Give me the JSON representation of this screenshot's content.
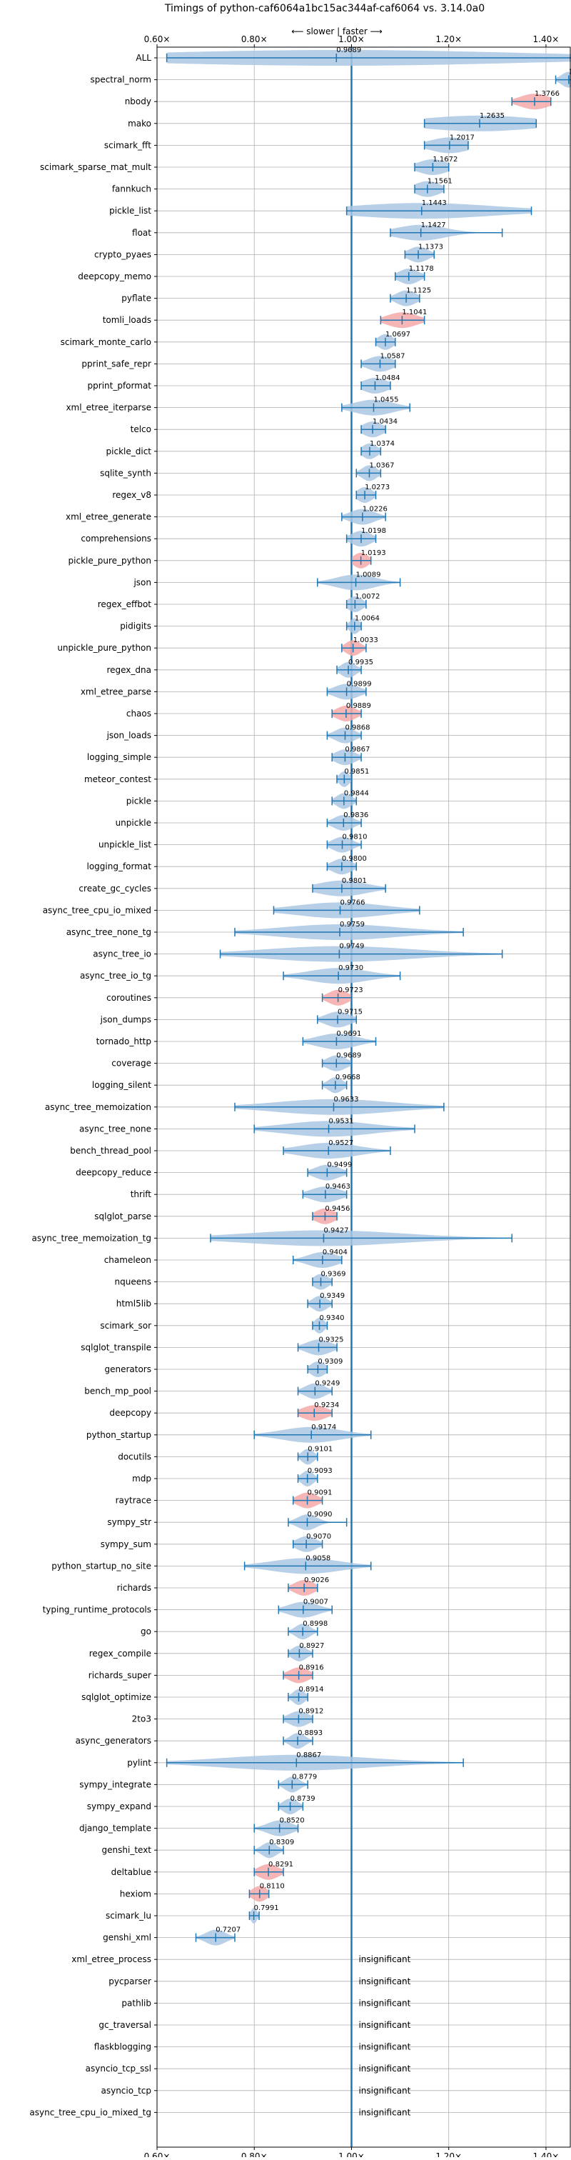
{
  "chart_data": {
    "type": "violin",
    "title": "Timings of python-caf6064a1bc15ac344af-caf6064 vs. 3.14.0a0",
    "direction_label": "⟵ slower | faster ⟶",
    "xlim": [
      0.6,
      1.45
    ],
    "x_ticks": [
      0.6,
      0.8,
      1.0,
      1.2,
      1.4
    ],
    "x_tick_labels": [
      "0.60×",
      "0.80×",
      "1.00×",
      "1.20×",
      "1.40×"
    ],
    "grid": true,
    "reference_x": 1.0,
    "insignificant_label": "insignificant",
    "colors": {
      "normal": "#1f77b4",
      "normal_fill": "#aac7e3",
      "highlight_fill": "#f4a9a9",
      "reference": "#1f77b4",
      "grid": "#b0b0b0"
    },
    "benchmarks": [
      {
        "name": "ALL",
        "value": 0.9689,
        "low": 0.62,
        "high": 1.46,
        "label": "0.9689",
        "highlight": false,
        "spread": 0.4
      },
      {
        "name": "spectral_norm",
        "value": 1.4468,
        "low": 1.42,
        "high": 1.46,
        "label": "1.4468",
        "highlight": false,
        "spread": 0.015
      },
      {
        "name": "nbody",
        "value": 1.3766,
        "low": 1.33,
        "high": 1.41,
        "label": "1.3766",
        "highlight": true,
        "spread": 0.03
      },
      {
        "name": "mako",
        "value": 1.2635,
        "low": 1.15,
        "high": 1.38,
        "label": "1.2635",
        "highlight": false,
        "spread": 0.12
      },
      {
        "name": "scimark_fft",
        "value": 1.2017,
        "low": 1.15,
        "high": 1.24,
        "label": "1.2017",
        "highlight": false,
        "spread": 0.04
      },
      {
        "name": "scimark_sparse_mat_mult",
        "value": 1.1672,
        "low": 1.13,
        "high": 1.2,
        "label": "1.1672",
        "highlight": false,
        "spread": 0.03
      },
      {
        "name": "fannkuch",
        "value": 1.1561,
        "low": 1.13,
        "high": 1.19,
        "label": "1.1561",
        "highlight": false,
        "spread": 0.025
      },
      {
        "name": "pickle_list",
        "value": 1.1443,
        "low": 0.99,
        "high": 1.37,
        "label": "1.1443",
        "highlight": false,
        "spread": 0.15
      },
      {
        "name": "float",
        "value": 1.1427,
        "low": 1.08,
        "high": 1.31,
        "label": "1.1427",
        "highlight": false,
        "spread": 0.05
      },
      {
        "name": "crypto_pyaes",
        "value": 1.1373,
        "low": 1.11,
        "high": 1.17,
        "label": "1.1373",
        "highlight": false,
        "spread": 0.02
      },
      {
        "name": "deepcopy_memo",
        "value": 1.1178,
        "low": 1.09,
        "high": 1.15,
        "label": "1.1178",
        "highlight": false,
        "spread": 0.02
      },
      {
        "name": "pyflate",
        "value": 1.1125,
        "low": 1.08,
        "high": 1.14,
        "label": "1.1125",
        "highlight": false,
        "spread": 0.02
      },
      {
        "name": "tomli_loads",
        "value": 1.1041,
        "low": 1.06,
        "high": 1.15,
        "label": "1.1041",
        "highlight": true,
        "spread": 0.03
      },
      {
        "name": "scimark_monte_carlo",
        "value": 1.0697,
        "low": 1.05,
        "high": 1.09,
        "label": "1.0697",
        "highlight": false,
        "spread": 0.015
      },
      {
        "name": "pprint_safe_repr",
        "value": 1.0587,
        "low": 1.02,
        "high": 1.09,
        "label": "1.0587",
        "highlight": false,
        "spread": 0.025
      },
      {
        "name": "pprint_pformat",
        "value": 1.0484,
        "low": 1.02,
        "high": 1.08,
        "label": "1.0484",
        "highlight": false,
        "spread": 0.025
      },
      {
        "name": "xml_etree_iterparse",
        "value": 1.0455,
        "low": 0.98,
        "high": 1.12,
        "label": "1.0455",
        "highlight": false,
        "spread": 0.04
      },
      {
        "name": "telco",
        "value": 1.0434,
        "low": 1.02,
        "high": 1.07,
        "label": "1.0434",
        "highlight": false,
        "spread": 0.02
      },
      {
        "name": "pickle_dict",
        "value": 1.0374,
        "low": 1.02,
        "high": 1.06,
        "label": "1.0374",
        "highlight": false,
        "spread": 0.015
      },
      {
        "name": "sqlite_synth",
        "value": 1.0367,
        "low": 1.01,
        "high": 1.06,
        "label": "1.0367",
        "highlight": false,
        "spread": 0.015
      },
      {
        "name": "regex_v8",
        "value": 1.0273,
        "low": 1.01,
        "high": 1.05,
        "label": "1.0273",
        "highlight": false,
        "spread": 0.015
      },
      {
        "name": "xml_etree_generate",
        "value": 1.0226,
        "low": 0.98,
        "high": 1.07,
        "label": "1.0226",
        "highlight": false,
        "spread": 0.025
      },
      {
        "name": "comprehensions",
        "value": 1.0198,
        "low": 0.99,
        "high": 1.05,
        "label": "1.0198",
        "highlight": false,
        "spread": 0.02
      },
      {
        "name": "pickle_pure_python",
        "value": 1.0193,
        "low": 1.0,
        "high": 1.04,
        "label": "1.0193",
        "highlight": true,
        "spread": 0.015
      },
      {
        "name": "json",
        "value": 1.0089,
        "low": 0.93,
        "high": 1.1,
        "label": "1.0089",
        "highlight": false,
        "spread": 0.04
      },
      {
        "name": "regex_effbot",
        "value": 1.0072,
        "low": 0.99,
        "high": 1.03,
        "label": "1.0072",
        "highlight": false,
        "spread": 0.015
      },
      {
        "name": "pidigits",
        "value": 1.0064,
        "low": 0.99,
        "high": 1.02,
        "label": "1.0064",
        "highlight": false,
        "spread": 0.01
      },
      {
        "name": "unpickle_pure_python",
        "value": 1.0033,
        "low": 0.98,
        "high": 1.03,
        "label": "1.0033",
        "highlight": true,
        "spread": 0.015
      },
      {
        "name": "regex_dna",
        "value": 0.9935,
        "low": 0.97,
        "high": 1.02,
        "label": "0.9935",
        "highlight": false,
        "spread": 0.015
      },
      {
        "name": "xml_etree_parse",
        "value": 0.9899,
        "low": 0.95,
        "high": 1.03,
        "label": "0.9899",
        "highlight": false,
        "spread": 0.025
      },
      {
        "name": "chaos",
        "value": 0.9889,
        "low": 0.96,
        "high": 1.02,
        "label": "0.9889",
        "highlight": true,
        "spread": 0.02
      },
      {
        "name": "json_loads",
        "value": 0.9868,
        "low": 0.95,
        "high": 1.02,
        "label": "0.9868",
        "highlight": false,
        "spread": 0.02
      },
      {
        "name": "logging_simple",
        "value": 0.9867,
        "low": 0.96,
        "high": 1.02,
        "label": "0.9867",
        "highlight": false,
        "spread": 0.02
      },
      {
        "name": "meteor_contest",
        "value": 0.9851,
        "low": 0.97,
        "high": 1.0,
        "label": "0.9851",
        "highlight": false,
        "spread": 0.01
      },
      {
        "name": "pickle",
        "value": 0.9844,
        "low": 0.96,
        "high": 1.01,
        "label": "0.9844",
        "highlight": false,
        "spread": 0.015
      },
      {
        "name": "unpickle",
        "value": 0.9836,
        "low": 0.95,
        "high": 1.02,
        "label": "0.9836",
        "highlight": false,
        "spread": 0.02
      },
      {
        "name": "unpickle_list",
        "value": 0.981,
        "low": 0.95,
        "high": 1.02,
        "label": "0.9810",
        "highlight": false,
        "spread": 0.02
      },
      {
        "name": "logging_format",
        "value": 0.98,
        "low": 0.95,
        "high": 1.01,
        "label": "0.9800",
        "highlight": false,
        "spread": 0.02
      },
      {
        "name": "create_gc_cycles",
        "value": 0.9801,
        "low": 0.92,
        "high": 1.07,
        "label": "0.9801",
        "highlight": false,
        "spread": 0.05
      },
      {
        "name": "async_tree_cpu_io_mixed",
        "value": 0.9766,
        "low": 0.84,
        "high": 1.14,
        "label": "0.9766",
        "highlight": false,
        "spread": 0.09
      },
      {
        "name": "async_tree_none_tg",
        "value": 0.9759,
        "low": 0.76,
        "high": 1.23,
        "label": "0.9759",
        "highlight": false,
        "spread": 0.12
      },
      {
        "name": "async_tree_io",
        "value": 0.9749,
        "low": 0.73,
        "high": 1.31,
        "label": "0.9749",
        "highlight": false,
        "spread": 0.15
      },
      {
        "name": "async_tree_io_tg",
        "value": 0.973,
        "low": 0.86,
        "high": 1.1,
        "label": "0.9730",
        "highlight": false,
        "spread": 0.06
      },
      {
        "name": "coroutines",
        "value": 0.9723,
        "low": 0.94,
        "high": 1.0,
        "label": "0.9723",
        "highlight": true,
        "spread": 0.02
      },
      {
        "name": "json_dumps",
        "value": 0.9715,
        "low": 0.93,
        "high": 1.01,
        "label": "0.9715",
        "highlight": false,
        "spread": 0.025
      },
      {
        "name": "tornado_http",
        "value": 0.9691,
        "low": 0.9,
        "high": 1.05,
        "label": "0.9691",
        "highlight": false,
        "spread": 0.04
      },
      {
        "name": "coverage",
        "value": 0.9689,
        "low": 0.94,
        "high": 1.0,
        "label": "0.9689",
        "highlight": false,
        "spread": 0.02
      },
      {
        "name": "logging_silent",
        "value": 0.9668,
        "low": 0.94,
        "high": 0.99,
        "label": "0.9668",
        "highlight": false,
        "spread": 0.015
      },
      {
        "name": "async_tree_memoization",
        "value": 0.9633,
        "low": 0.76,
        "high": 1.19,
        "label": "0.9633",
        "highlight": false,
        "spread": 0.12
      },
      {
        "name": "async_tree_none",
        "value": 0.9531,
        "low": 0.8,
        "high": 1.13,
        "label": "0.9531",
        "highlight": false,
        "spread": 0.09
      },
      {
        "name": "bench_thread_pool",
        "value": 0.9527,
        "low": 0.86,
        "high": 1.08,
        "label": "0.9527",
        "highlight": false,
        "spread": 0.06
      },
      {
        "name": "deepcopy_reduce",
        "value": 0.9499,
        "low": 0.91,
        "high": 0.99,
        "label": "0.9499",
        "highlight": false,
        "spread": 0.025
      },
      {
        "name": "thrift",
        "value": 0.9463,
        "low": 0.9,
        "high": 0.99,
        "label": "0.9463",
        "highlight": false,
        "spread": 0.03
      },
      {
        "name": "sqlglot_parse",
        "value": 0.9456,
        "low": 0.92,
        "high": 0.97,
        "label": "0.9456",
        "highlight": true,
        "spread": 0.02
      },
      {
        "name": "async_tree_memoization_tg",
        "value": 0.9427,
        "low": 0.71,
        "high": 1.33,
        "label": "0.9427",
        "highlight": false,
        "spread": 0.16
      },
      {
        "name": "chameleon",
        "value": 0.9404,
        "low": 0.88,
        "high": 0.98,
        "label": "0.9404",
        "highlight": false,
        "spread": 0.03
      },
      {
        "name": "nqueens",
        "value": 0.9369,
        "low": 0.92,
        "high": 0.96,
        "label": "0.9369",
        "highlight": false,
        "spread": 0.015
      },
      {
        "name": "html5lib",
        "value": 0.9349,
        "low": 0.91,
        "high": 0.96,
        "label": "0.9349",
        "highlight": false,
        "spread": 0.015
      },
      {
        "name": "scimark_sor",
        "value": 0.934,
        "low": 0.92,
        "high": 0.95,
        "label": "0.9340",
        "highlight": false,
        "spread": 0.01
      },
      {
        "name": "sqlglot_transpile",
        "value": 0.9325,
        "low": 0.89,
        "high": 0.97,
        "label": "0.9325",
        "highlight": false,
        "spread": 0.025
      },
      {
        "name": "generators",
        "value": 0.9309,
        "low": 0.91,
        "high": 0.95,
        "label": "0.9309",
        "highlight": false,
        "spread": 0.015
      },
      {
        "name": "bench_mp_pool",
        "value": 0.9249,
        "low": 0.89,
        "high": 0.96,
        "label": "0.9249",
        "highlight": false,
        "spread": 0.02
      },
      {
        "name": "deepcopy",
        "value": 0.9234,
        "low": 0.89,
        "high": 0.96,
        "label": "0.9234",
        "highlight": true,
        "spread": 0.025
      },
      {
        "name": "python_startup",
        "value": 0.9174,
        "low": 0.8,
        "high": 1.04,
        "label": "0.9174",
        "highlight": false,
        "spread": 0.06
      },
      {
        "name": "docutils",
        "value": 0.9101,
        "low": 0.89,
        "high": 0.93,
        "label": "0.9101",
        "highlight": false,
        "spread": 0.012
      },
      {
        "name": "mdp",
        "value": 0.9093,
        "low": 0.89,
        "high": 0.93,
        "label": "0.9093",
        "highlight": false,
        "spread": 0.012
      },
      {
        "name": "raytrace",
        "value": 0.9091,
        "low": 0.88,
        "high": 0.94,
        "label": "0.9091",
        "highlight": true,
        "spread": 0.02
      },
      {
        "name": "sympy_str",
        "value": 0.909,
        "low": 0.87,
        "high": 0.99,
        "label": "0.9090",
        "highlight": false,
        "spread": 0.02
      },
      {
        "name": "sympy_sum",
        "value": 0.907,
        "low": 0.88,
        "high": 0.94,
        "label": "0.9070",
        "highlight": false,
        "spread": 0.02
      },
      {
        "name": "python_startup_no_site",
        "value": 0.9058,
        "low": 0.78,
        "high": 1.04,
        "label": "0.9058",
        "highlight": false,
        "spread": 0.07
      },
      {
        "name": "richards",
        "value": 0.9026,
        "low": 0.87,
        "high": 0.93,
        "label": "0.9026",
        "highlight": true,
        "spread": 0.02
      },
      {
        "name": "typing_runtime_protocols",
        "value": 0.9007,
        "low": 0.85,
        "high": 0.96,
        "label": "0.9007",
        "highlight": false,
        "spread": 0.03
      },
      {
        "name": "go",
        "value": 0.8998,
        "low": 0.87,
        "high": 0.93,
        "label": "0.8998",
        "highlight": false,
        "spread": 0.015
      },
      {
        "name": "regex_compile",
        "value": 0.8927,
        "low": 0.87,
        "high": 0.92,
        "label": "0.8927",
        "highlight": false,
        "spread": 0.015
      },
      {
        "name": "richards_super",
        "value": 0.8916,
        "low": 0.86,
        "high": 0.92,
        "label": "0.8916",
        "highlight": true,
        "spread": 0.02
      },
      {
        "name": "sqlglot_optimize",
        "value": 0.8914,
        "low": 0.87,
        "high": 0.91,
        "label": "0.8914",
        "highlight": false,
        "spread": 0.012
      },
      {
        "name": "2to3",
        "value": 0.8912,
        "low": 0.86,
        "high": 0.92,
        "label": "0.8912",
        "highlight": false,
        "spread": 0.02
      },
      {
        "name": "async_generators",
        "value": 0.8893,
        "low": 0.86,
        "high": 0.92,
        "label": "0.8893",
        "highlight": false,
        "spread": 0.015
      },
      {
        "name": "pylint",
        "value": 0.8867,
        "low": 0.62,
        "high": 1.23,
        "label": "0.8867",
        "highlight": false,
        "spread": 0.15
      },
      {
        "name": "sympy_integrate",
        "value": 0.8779,
        "low": 0.85,
        "high": 0.91,
        "label": "0.8779",
        "highlight": false,
        "spread": 0.015
      },
      {
        "name": "sympy_expand",
        "value": 0.8739,
        "low": 0.85,
        "high": 0.9,
        "label": "0.8739",
        "highlight": false,
        "spread": 0.015
      },
      {
        "name": "django_template",
        "value": 0.852,
        "low": 0.8,
        "high": 0.89,
        "label": "0.8520",
        "highlight": false,
        "spread": 0.025
      },
      {
        "name": "genshi_text",
        "value": 0.8309,
        "low": 0.8,
        "high": 0.86,
        "label": "0.8309",
        "highlight": false,
        "spread": 0.015
      },
      {
        "name": "deltablue",
        "value": 0.8291,
        "low": 0.8,
        "high": 0.86,
        "label": "0.8291",
        "highlight": true,
        "spread": 0.02
      },
      {
        "name": "hexiom",
        "value": 0.811,
        "low": 0.79,
        "high": 0.83,
        "label": "0.8110",
        "highlight": true,
        "spread": 0.015
      },
      {
        "name": "scimark_lu",
        "value": 0.7991,
        "low": 0.79,
        "high": 0.81,
        "label": "0.7991",
        "highlight": false,
        "spread": 0.006
      },
      {
        "name": "genshi_xml",
        "value": 0.7207,
        "low": 0.68,
        "high": 0.76,
        "label": "0.7207",
        "highlight": false,
        "spread": 0.02
      },
      {
        "name": "xml_etree_process",
        "value": null,
        "low": null,
        "high": null,
        "label": "insignificant",
        "highlight": false,
        "spread": 0
      },
      {
        "name": "pycparser",
        "value": null,
        "low": null,
        "high": null,
        "label": "insignificant",
        "highlight": false,
        "spread": 0
      },
      {
        "name": "pathlib",
        "value": null,
        "low": null,
        "high": null,
        "label": "insignificant",
        "highlight": false,
        "spread": 0
      },
      {
        "name": "gc_traversal",
        "value": null,
        "low": null,
        "high": null,
        "label": "insignificant",
        "highlight": false,
        "spread": 0
      },
      {
        "name": "flaskblogging",
        "value": null,
        "low": null,
        "high": null,
        "label": "insignificant",
        "highlight": false,
        "spread": 0
      },
      {
        "name": "asyncio_tcp_ssl",
        "value": null,
        "low": null,
        "high": null,
        "label": "insignificant",
        "highlight": false,
        "spread": 0
      },
      {
        "name": "asyncio_tcp",
        "value": null,
        "low": null,
        "high": null,
        "label": "insignificant",
        "highlight": false,
        "spread": 0
      },
      {
        "name": "async_tree_cpu_io_mixed_tg",
        "value": null,
        "low": null,
        "high": null,
        "label": "insignificant",
        "highlight": false,
        "spread": 0
      }
    ]
  }
}
